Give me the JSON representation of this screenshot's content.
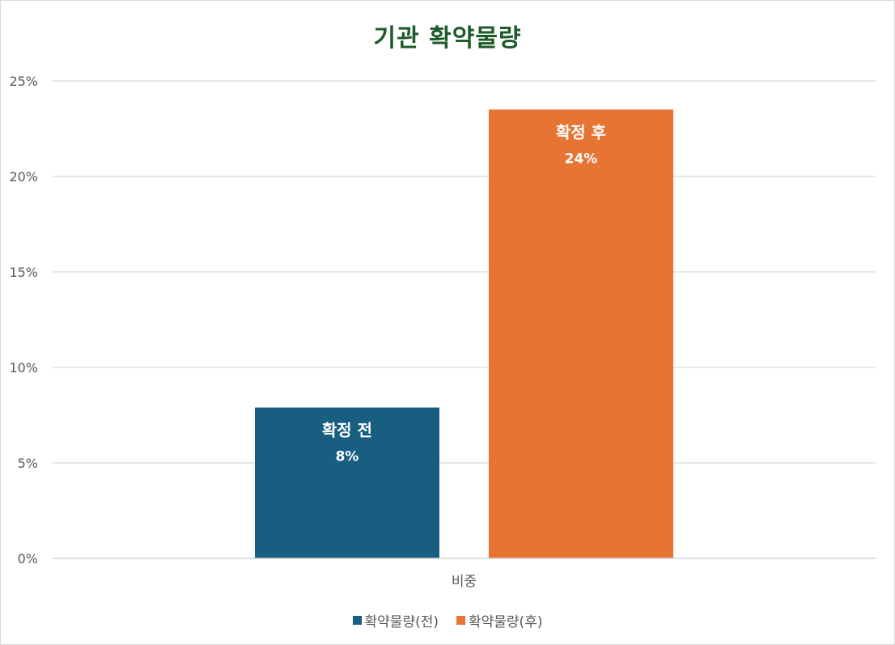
{
  "chart_data": {
    "type": "bar",
    "title": "기관 확약물량",
    "categories": [
      "비중"
    ],
    "series": [
      {
        "name": "확약물량(전)",
        "values": [
          0.079
        ],
        "color": "#175e80",
        "label_name": "확정 전",
        "label_value": "8%"
      },
      {
        "name": "확약물량(후)",
        "values": [
          0.235
        ],
        "color": "#e87434",
        "label_name": "확정 후",
        "label_value": "24%"
      }
    ],
    "ylim": [
      0,
      0.25
    ],
    "yticks": [
      {
        "value": 0,
        "label": "0%"
      },
      {
        "value": 0.05,
        "label": "5%"
      },
      {
        "value": 0.1,
        "label": "10%"
      },
      {
        "value": 0.15,
        "label": "15%"
      },
      {
        "value": 0.2,
        "label": "20%"
      },
      {
        "value": 0.25,
        "label": "25%"
      }
    ],
    "grid": true,
    "legend_position": "bottom"
  }
}
